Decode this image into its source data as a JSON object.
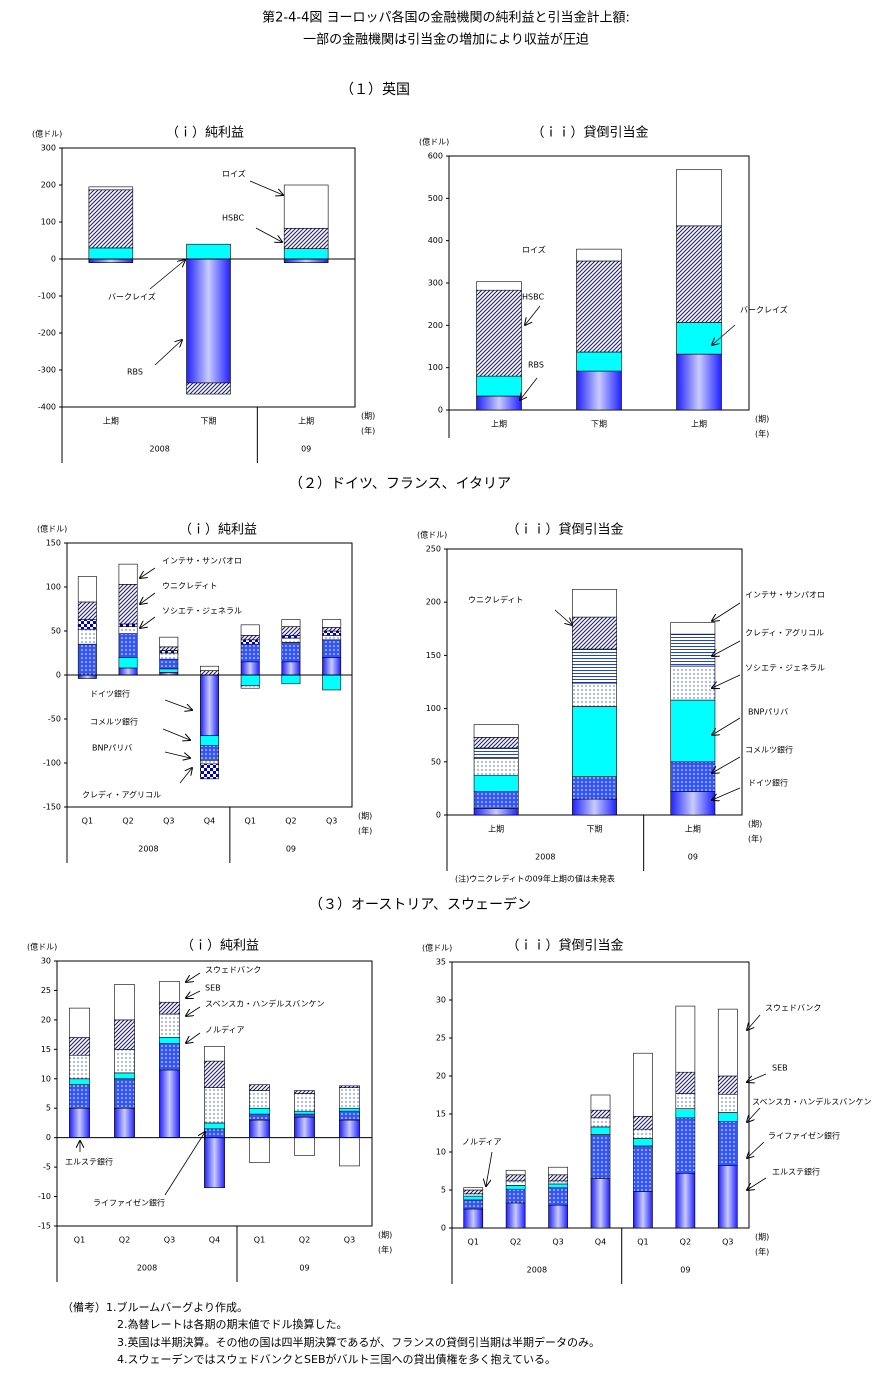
{
  "title": [
    "第2-4-4図 ヨーロッパ各国の金融機関の純利益と引当金計上額:",
    "一部の金融機関は引当金の増加により収益が圧迫"
  ],
  "sections": [
    "（１）英国",
    "（２）ドイツ、フランス、イタリア",
    "（３）オーストリア、スウェーデン"
  ],
  "remarks": [
    "（備考）1.ブルームバーグより作成。",
    "2.為替レートは各期の期末値でドル換算した。",
    "3.英国は半期決算。その他の国は四半期決算であるが、フランスの貸倒引当期は半期データのみ。",
    "4.スウェーデンではスウェドバンクとSEBがバルト三国への貸出債権を多く抱えている。"
  ],
  "chart_data": [
    {
      "type": "bar",
      "stacked": true,
      "title": "（ｉ）純利益",
      "y_unit": "(億ドル)",
      "x_label": "(期)",
      "x2_label": "(年)",
      "categories": [
        "上期",
        "下期",
        "上期"
      ],
      "years": [
        "2008",
        null,
        "09"
      ],
      "ylim": [
        -400,
        300
      ],
      "yticks": [
        -400,
        -300,
        -200,
        -100,
        0,
        100,
        200,
        300
      ],
      "series": [
        {
          "name": "RBS",
          "color": "#2020ff",
          "pattern": "gradient",
          "values": [
            -10,
            -335,
            -10
          ]
        },
        {
          "name": "バークレイズ",
          "color": "#00ffff",
          "pattern": "solid",
          "values": [
            30,
            40,
            28
          ]
        },
        {
          "name": "HSBC",
          "color": "#1a1aa0",
          "pattern": "hatch",
          "values": [
            157,
            -30,
            55
          ]
        },
        {
          "name": "ロイズ",
          "color": "#ffffff",
          "pattern": "solid",
          "values": [
            8,
            0,
            117
          ]
        }
      ]
    },
    {
      "type": "bar",
      "stacked": true,
      "title": "（ｉｉ）貸倒引当金",
      "y_unit": "(億ドル)",
      "x_label": "(期)",
      "x2_label": "(年)",
      "categories": [
        "上期",
        "下期",
        "上期"
      ],
      "ylim": [
        0,
        600
      ],
      "yticks": [
        0,
        100,
        200,
        300,
        400,
        500,
        600
      ],
      "series": [
        {
          "name": "RBS",
          "color": "#2020ff",
          "pattern": "gradient",
          "values": [
            33,
            92,
            132
          ]
        },
        {
          "name": "バークレイズ",
          "color": "#00ffff",
          "pattern": "solid",
          "values": [
            47,
            45,
            75
          ]
        },
        {
          "name": "HSBC",
          "color": "#1a1aa0",
          "pattern": "hatch",
          "values": [
            203,
            215,
            228
          ]
        },
        {
          "name": "ロイズ",
          "color": "#ffffff",
          "pattern": "solid",
          "values": [
            20,
            28,
            133
          ]
        }
      ]
    },
    {
      "type": "bar",
      "stacked": true,
      "title": "（ｉ）純利益",
      "y_unit": "(億ドル)",
      "x_label": "(期)",
      "x2_label": "(年)",
      "categories": [
        "Q1",
        "Q2",
        "Q3",
        "Q4",
        "Q1",
        "Q2",
        "Q3"
      ],
      "years": [
        "2008",
        null,
        null,
        null,
        "09",
        null,
        null
      ],
      "ylim": [
        -150,
        150
      ],
      "yticks": [
        -150,
        -100,
        -50,
        0,
        50,
        100,
        150
      ],
      "series": [
        {
          "name": "ドイツ銀行",
          "color": "#2020ff",
          "pattern": "gradient",
          "values": [
            -4,
            8,
            3,
            -69,
            15,
            15,
            20
          ]
        },
        {
          "name": "コメルツ銀行",
          "color": "#00ffff",
          "pattern": "solid",
          "values": [
            0,
            12,
            4,
            -11,
            -12,
            -10,
            -17
          ]
        },
        {
          "name": "BNPパリバ",
          "color": "#3355ff",
          "pattern": "bluedots",
          "values": [
            35,
            27,
            11,
            -17,
            20,
            22,
            20
          ]
        },
        {
          "name": "ソシエテ・ジェネラル",
          "color": "#3355ff",
          "pattern": "whitedots",
          "values": [
            17,
            8,
            7,
            -4,
            -3,
            5,
            5
          ]
        },
        {
          "name": "クレディ・アグリコル",
          "color": "#0000cc",
          "pattern": "checker",
          "values": [
            11,
            3,
            3,
            -17,
            5,
            3,
            5
          ]
        },
        {
          "name": "ウニクレディト",
          "color": "#1a1aa0",
          "pattern": "hatch",
          "values": [
            20,
            45,
            4,
            5,
            5,
            10,
            4
          ]
        },
        {
          "name": "インテサ・サンパオロ",
          "color": "#ffffff",
          "pattern": "solid",
          "values": [
            29,
            23,
            11,
            5,
            12,
            8,
            9
          ]
        }
      ]
    },
    {
      "type": "bar",
      "stacked": true,
      "title": "（ｉｉ）貸倒引当金",
      "y_unit": "(億ドル)",
      "x_label": "(期)",
      "x2_label": "(年)",
      "note": "(注)ウニクレディトの09年上期の値は未発表",
      "categories": [
        "上期",
        "下期",
        "上期"
      ],
      "years": [
        "2008",
        null,
        "09"
      ],
      "ylim": [
        0,
        250
      ],
      "yticks": [
        0,
        50,
        100,
        150,
        200,
        250
      ],
      "series": [
        {
          "name": "ドイツ銀行",
          "color": "#2020ff",
          "pattern": "gradient",
          "values": [
            6,
            15,
            22
          ]
        },
        {
          "name": "コメルツ銀行",
          "color": "#3355ff",
          "pattern": "bluedots",
          "values": [
            16,
            21,
            28
          ]
        },
        {
          "name": "BNPパリバ",
          "color": "#00ffff",
          "pattern": "solid",
          "values": [
            15,
            66,
            58
          ]
        },
        {
          "name": "ソシエテ・ジェネラル",
          "color": "#3355ff",
          "pattern": "whitedots",
          "values": [
            16,
            22,
            32
          ]
        },
        {
          "name": "クレディ・アグリコル",
          "color": "#2244cc",
          "pattern": "lines",
          "values": [
            10,
            32,
            30
          ]
        },
        {
          "name": "ウニクレディト",
          "color": "#1a1aa0",
          "pattern": "hatch",
          "values": [
            10,
            30,
            null
          ]
        },
        {
          "name": "インテサ・サンパオロ",
          "color": "#ffffff",
          "pattern": "solid",
          "values": [
            12,
            26,
            11
          ]
        }
      ]
    },
    {
      "type": "bar",
      "stacked": true,
      "title": "（ｉ）純利益",
      "y_unit": "(億ドル)",
      "x_label": "(期)",
      "x2_label": "(年)",
      "categories": [
        "Q1",
        "Q2",
        "Q3",
        "Q4",
        "Q1",
        "Q2",
        "Q3"
      ],
      "years": [
        "2008",
        null,
        null,
        null,
        "09",
        null,
        null
      ],
      "ylim": [
        -15,
        30
      ],
      "yticks": [
        -15,
        -10,
        -5,
        0,
        5,
        10,
        15,
        20,
        25,
        30
      ],
      "series": [
        {
          "name": "エルステ銀行",
          "color": "#2020ff",
          "pattern": "gradient",
          "values": [
            5,
            5,
            11.5,
            -8.5,
            3,
            3.5,
            3
          ]
        },
        {
          "name": "ライファイゼン銀行",
          "color": "#3355ff",
          "pattern": "bluedots",
          "values": [
            4,
            5,
            4.5,
            1.5,
            1,
            0.5,
            1.5
          ]
        },
        {
          "name": "ノルディア",
          "color": "#00ffff",
          "pattern": "solid",
          "values": [
            1,
            1,
            1,
            1,
            1,
            0.5,
            0.5
          ]
        },
        {
          "name": "スベンスカ・ハンデルスバンケン",
          "color": "#3355ff",
          "pattern": "whitedots",
          "values": [
            4,
            4,
            4,
            6,
            3,
            3,
            3.5
          ]
        },
        {
          "name": "SEB",
          "color": "#1a1aa0",
          "pattern": "hatch",
          "values": [
            3,
            5,
            2,
            4.5,
            1,
            0.5,
            0.3
          ]
        },
        {
          "name": "スウェドバンク",
          "color": "#ffffff",
          "pattern": "solid",
          "values": [
            5,
            6,
            3.5,
            2.5,
            -4.2,
            -3,
            -4.8
          ]
        }
      ]
    },
    {
      "type": "bar",
      "stacked": true,
      "title": "（ｉｉ）貸倒引当金",
      "y_unit": "(億ドル)",
      "x_label": "(期)",
      "x2_label": "(年)",
      "categories": [
        "Q1",
        "Q2",
        "Q3",
        "Q4",
        "Q1",
        "Q2",
        "Q3"
      ],
      "years": [
        "2008",
        null,
        null,
        null,
        "09",
        null,
        null
      ],
      "ylim": [
        0,
        35
      ],
      "yticks": [
        0,
        5,
        10,
        15,
        20,
        25,
        30,
        35
      ],
      "series": [
        {
          "name": "エルステ銀行",
          "color": "#2020ff",
          "pattern": "gradient",
          "values": [
            2.5,
            3.3,
            3,
            6.5,
            4.8,
            7.2,
            8.2
          ]
        },
        {
          "name": "ライファイゼン銀行",
          "color": "#3355ff",
          "pattern": "bluedots",
          "values": [
            1.2,
            1.8,
            2.3,
            5.8,
            6,
            7.3,
            5.8
          ]
        },
        {
          "name": "ノルディア",
          "color": "#00ffff",
          "pattern": "solid",
          "values": [
            0.5,
            0.5,
            0.5,
            1,
            1,
            1.2,
            1.2
          ]
        },
        {
          "name": "スベンスカ・ハンデルスバンケン",
          "color": "#3355ff",
          "pattern": "whitedots",
          "values": [
            0.3,
            0.6,
            0.4,
            1.2,
            1.2,
            2,
            2.4
          ]
        },
        {
          "name": "SEB",
          "color": "#1a1aa0",
          "pattern": "hatch",
          "values": [
            0.5,
            0.8,
            0.8,
            1,
            1.7,
            2.8,
            2.4
          ]
        },
        {
          "name": "スウェドバンク",
          "color": "#ffffff",
          "pattern": "solid",
          "values": [
            0.3,
            0.6,
            1,
            2,
            8.3,
            8.7,
            8.8
          ]
        }
      ]
    }
  ]
}
